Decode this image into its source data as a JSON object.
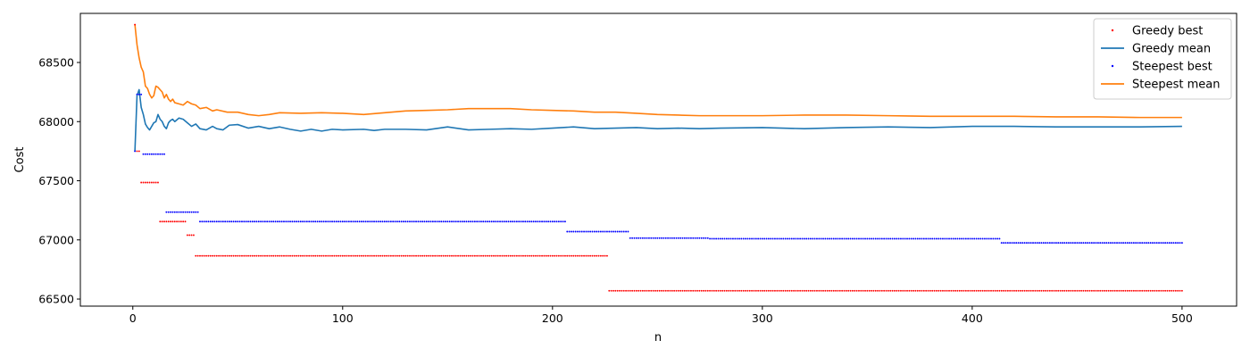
{
  "chart_data": {
    "type": "scatter+line",
    "title": "",
    "xlabel": "n",
    "ylabel": "Cost",
    "xlim": [
      -25,
      526
    ],
    "ylim": [
      66440,
      68915
    ],
    "xticks": [
      0,
      100,
      200,
      300,
      400,
      500
    ],
    "yticks": [
      66500,
      67000,
      67500,
      68000,
      68500
    ],
    "grid": false,
    "legend_position": "top-right",
    "legend": [
      {
        "name": "Greedy best",
        "kind": "points",
        "color": "#ff0000"
      },
      {
        "name": "Greedy mean",
        "kind": "line",
        "color": "#1f77b4"
      },
      {
        "name": "Steepest best",
        "kind": "points",
        "color": "#0000ff"
      },
      {
        "name": "Steepest mean",
        "kind": "line",
        "color": "#ff7f0e"
      }
    ],
    "series": [
      {
        "name": "Greedy best",
        "kind": "step-points",
        "color": "#ff0000",
        "steps": [
          {
            "from": 1,
            "to": 1,
            "y": 68820
          },
          {
            "from": 2,
            "to": 3,
            "y": 67750
          },
          {
            "from": 4,
            "to": 12,
            "y": 67485
          },
          {
            "from": 13,
            "to": 25,
            "y": 67155
          },
          {
            "from": 26,
            "to": 29,
            "y": 67040
          },
          {
            "from": 30,
            "to": 226,
            "y": 66865
          },
          {
            "from": 227,
            "to": 500,
            "y": 66570
          }
        ]
      },
      {
        "name": "Steepest best",
        "kind": "step-points",
        "color": "#0000ff",
        "steps": [
          {
            "from": 1,
            "to": 1,
            "y": 67750
          },
          {
            "from": 2,
            "to": 4,
            "y": 68230
          },
          {
            "from": 5,
            "to": 15,
            "y": 67725
          },
          {
            "from": 16,
            "to": 31,
            "y": 67235
          },
          {
            "from": 32,
            "to": 206,
            "y": 67155
          },
          {
            "from": 207,
            "to": 236,
            "y": 67070
          },
          {
            "from": 237,
            "to": 274,
            "y": 67015
          },
          {
            "from": 275,
            "to": 413,
            "y": 67010
          },
          {
            "from": 414,
            "to": 500,
            "y": 66975
          }
        ]
      },
      {
        "name": "Greedy mean",
        "kind": "line",
        "color": "#1f77b4",
        "points": [
          [
            1,
            67750
          ],
          [
            2,
            68220
          ],
          [
            3,
            68270
          ],
          [
            4,
            68120
          ],
          [
            5,
            68060
          ],
          [
            6,
            67980
          ],
          [
            7,
            67950
          ],
          [
            8,
            67930
          ],
          [
            9,
            67960
          ],
          [
            10,
            67990
          ],
          [
            11,
            68000
          ],
          [
            12,
            68060
          ],
          [
            13,
            68020
          ],
          [
            14,
            68000
          ],
          [
            15,
            67960
          ],
          [
            16,
            67940
          ],
          [
            17,
            67990
          ],
          [
            18,
            68010
          ],
          [
            19,
            68020
          ],
          [
            20,
            68000
          ],
          [
            22,
            68030
          ],
          [
            24,
            68020
          ],
          [
            26,
            67990
          ],
          [
            28,
            67960
          ],
          [
            30,
            67980
          ],
          [
            32,
            67940
          ],
          [
            35,
            67930
          ],
          [
            38,
            67960
          ],
          [
            40,
            67940
          ],
          [
            43,
            67930
          ],
          [
            46,
            67970
          ],
          [
            50,
            67975
          ],
          [
            55,
            67945
          ],
          [
            60,
            67960
          ],
          [
            65,
            67940
          ],
          [
            70,
            67955
          ],
          [
            75,
            67935
          ],
          [
            80,
            67920
          ],
          [
            85,
            67935
          ],
          [
            90,
            67920
          ],
          [
            95,
            67935
          ],
          [
            100,
            67930
          ],
          [
            110,
            67935
          ],
          [
            115,
            67925
          ],
          [
            120,
            67935
          ],
          [
            130,
            67935
          ],
          [
            140,
            67930
          ],
          [
            150,
            67955
          ],
          [
            160,
            67930
          ],
          [
            170,
            67935
          ],
          [
            180,
            67940
          ],
          [
            190,
            67935
          ],
          [
            200,
            67945
          ],
          [
            210,
            67955
          ],
          [
            220,
            67940
          ],
          [
            230,
            67945
          ],
          [
            240,
            67950
          ],
          [
            250,
            67940
          ],
          [
            260,
            67945
          ],
          [
            270,
            67940
          ],
          [
            280,
            67945
          ],
          [
            300,
            67950
          ],
          [
            320,
            67940
          ],
          [
            340,
            67950
          ],
          [
            360,
            67955
          ],
          [
            380,
            67950
          ],
          [
            400,
            67960
          ],
          [
            420,
            67960
          ],
          [
            440,
            67955
          ],
          [
            460,
            67955
          ],
          [
            480,
            67955
          ],
          [
            500,
            67960
          ]
        ]
      },
      {
        "name": "Steepest mean",
        "kind": "line",
        "color": "#ff7f0e",
        "points": [
          [
            1,
            68820
          ],
          [
            2,
            68650
          ],
          [
            3,
            68540
          ],
          [
            4,
            68460
          ],
          [
            5,
            68420
          ],
          [
            6,
            68300
          ],
          [
            7,
            68280
          ],
          [
            8,
            68230
          ],
          [
            9,
            68200
          ],
          [
            10,
            68220
          ],
          [
            11,
            68300
          ],
          [
            12,
            68290
          ],
          [
            13,
            68270
          ],
          [
            14,
            68250
          ],
          [
            15,
            68200
          ],
          [
            16,
            68230
          ],
          [
            17,
            68190
          ],
          [
            18,
            68170
          ],
          [
            19,
            68190
          ],
          [
            20,
            68160
          ],
          [
            22,
            68150
          ],
          [
            24,
            68140
          ],
          [
            26,
            68170
          ],
          [
            28,
            68150
          ],
          [
            30,
            68140
          ],
          [
            32,
            68110
          ],
          [
            35,
            68120
          ],
          [
            38,
            68090
          ],
          [
            40,
            68100
          ],
          [
            45,
            68080
          ],
          [
            50,
            68080
          ],
          [
            55,
            68060
          ],
          [
            60,
            68050
          ],
          [
            65,
            68060
          ],
          [
            70,
            68075
          ],
          [
            80,
            68070
          ],
          [
            90,
            68075
          ],
          [
            100,
            68070
          ],
          [
            110,
            68060
          ],
          [
            120,
            68075
          ],
          [
            130,
            68090
          ],
          [
            140,
            68095
          ],
          [
            150,
            68100
          ],
          [
            160,
            68110
          ],
          [
            170,
            68110
          ],
          [
            180,
            68110
          ],
          [
            190,
            68100
          ],
          [
            200,
            68095
          ],
          [
            210,
            68090
          ],
          [
            220,
            68080
          ],
          [
            230,
            68080
          ],
          [
            240,
            68070
          ],
          [
            250,
            68060
          ],
          [
            260,
            68055
          ],
          [
            270,
            68050
          ],
          [
            280,
            68050
          ],
          [
            300,
            68050
          ],
          [
            320,
            68055
          ],
          [
            340,
            68055
          ],
          [
            360,
            68050
          ],
          [
            380,
            68045
          ],
          [
            400,
            68045
          ],
          [
            420,
            68045
          ],
          [
            440,
            68040
          ],
          [
            460,
            68040
          ],
          [
            480,
            68035
          ],
          [
            500,
            68035
          ]
        ]
      }
    ]
  }
}
